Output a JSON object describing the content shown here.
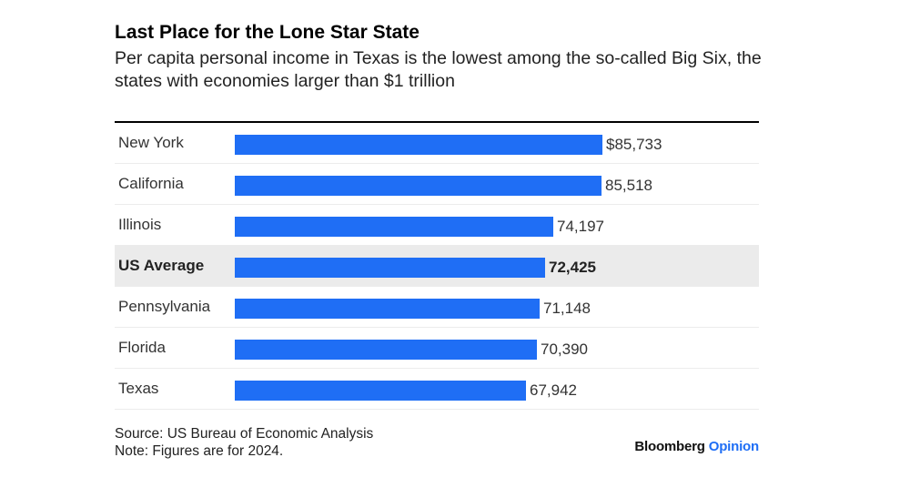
{
  "header": {
    "title": "Last Place for the Lone Star State",
    "subtitle": "Per capita personal income in Texas is the lowest among the so-called Big Six, the states with economies larger than $1 trillion"
  },
  "chart_data": {
    "type": "bar",
    "orientation": "horizontal",
    "categories": [
      "New York",
      "California",
      "Illinois",
      "US Average",
      "Pennsylvania",
      "Florida",
      "Texas"
    ],
    "values": [
      85733,
      85518,
      74197,
      72425,
      71148,
      70390,
      67942
    ],
    "value_labels": [
      "$85,733",
      "85,518",
      "74,197",
      "72,425",
      "71,148",
      "70,390",
      "67,942"
    ],
    "highlight_category": "US Average",
    "bar_color": "#1f6ef5",
    "xlim": [
      0,
      85733
    ],
    "title": "Last Place for the Lone Star State",
    "xlabel": "",
    "ylabel": ""
  },
  "footer": {
    "source": "Source: US Bureau of Economic Analysis",
    "note": "Note: Figures are for 2024.",
    "brand_main": "Bloomberg",
    "brand_sub": "Opinion"
  }
}
